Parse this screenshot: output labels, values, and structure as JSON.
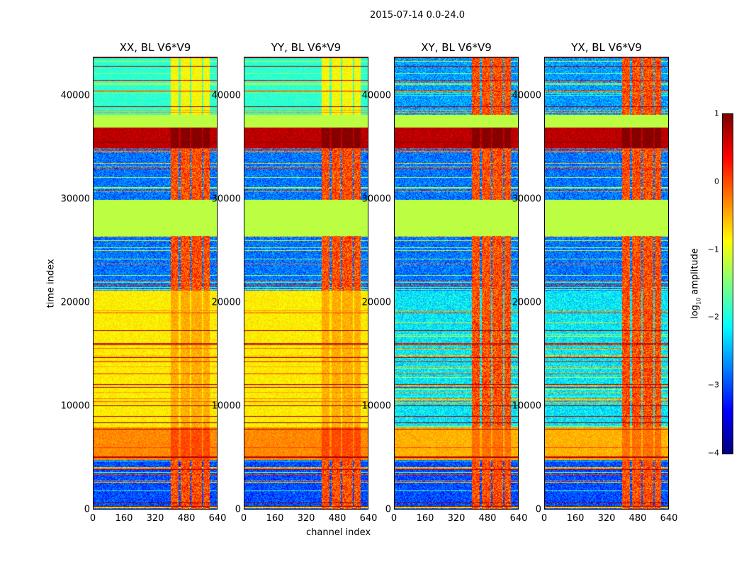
{
  "chart_data": {
    "type": "heatmap",
    "title": "2015-07-14 0.0-24.0",
    "xlabel": "channel index",
    "ylabel": "time index",
    "xlim": [
      0,
      640
    ],
    "ylim": [
      0,
      43800
    ],
    "xticks": [
      "0",
      "160",
      "320",
      "480",
      "640"
    ],
    "yticks": [
      "0",
      "10000",
      "20000",
      "30000",
      "40000"
    ],
    "colorbar": {
      "label_prefix": "log",
      "label_sub": "10",
      "label_suffix": " amplitude",
      "range": [
        -4,
        1
      ],
      "ticks": [
        "1",
        "0",
        "−1",
        "−2",
        "−3",
        "−4"
      ],
      "colormap": "jet"
    },
    "panels": [
      {
        "title": "XX, BL V6*V9",
        "cross": false
      },
      {
        "title": "YY, BL V6*V9",
        "cross": false
      },
      {
        "title": "XY, BL V6*V9",
        "cross": true
      },
      {
        "title": "YX, BL V6*V9",
        "cross": true
      }
    ],
    "time_bands": [
      {
        "t": [
          0,
          4800
        ],
        "parallel": -3.0,
        "cross": -3.0
      },
      {
        "t": [
          4800,
          8000
        ],
        "parallel": -0.3,
        "cross": -0.5
      },
      {
        "t": [
          8000,
          21200
        ],
        "parallel": -0.8,
        "cross": -2.2
      },
      {
        "t": [
          21200,
          26500
        ],
        "parallel": -2.8,
        "cross": -2.8
      },
      {
        "t": [
          26500,
          30000
        ],
        "parallel": -1.2,
        "cross": -1.2
      },
      {
        "t": [
          30000,
          35000
        ],
        "parallel": -2.8,
        "cross": -2.8
      },
      {
        "t": [
          35000,
          37000
        ],
        "parallel": 0.7,
        "cross": 0.7
      },
      {
        "t": [
          37000,
          38200
        ],
        "parallel": -1.2,
        "cross": -1.2
      },
      {
        "t": [
          38200,
          43800
        ],
        "parallel": -1.9,
        "cross": -2.6
      }
    ],
    "rfi_channels": [
      [
        400,
        440
      ],
      [
        450,
        495
      ],
      [
        505,
        560
      ],
      [
        565,
        600
      ]
    ]
  }
}
